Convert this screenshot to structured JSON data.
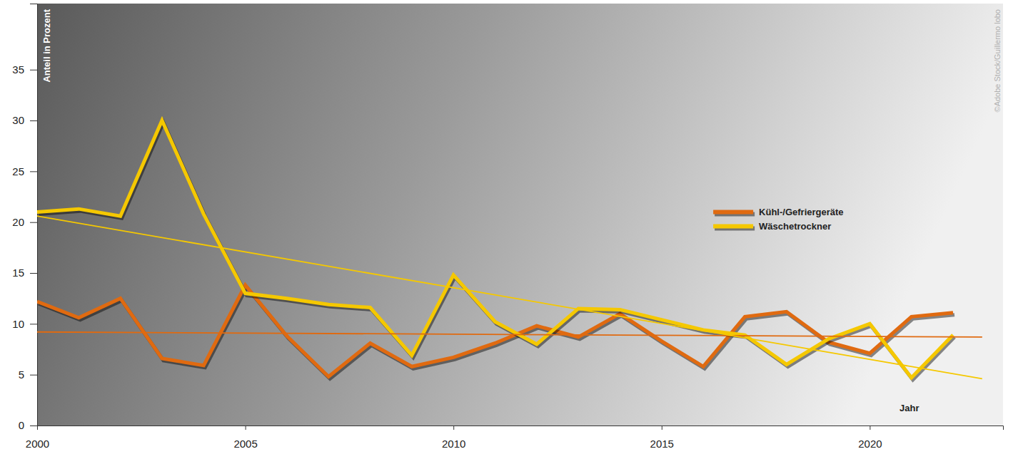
{
  "chart_data": {
    "type": "line",
    "x_label": "Jahr",
    "y_label": "Anteil in Prozent",
    "credit": "©Adobe Stock/Guillermo lobo",
    "x": [
      2000,
      2001,
      2002,
      2003,
      2004,
      2005,
      2006,
      2007,
      2008,
      2009,
      2010,
      2011,
      2012,
      2013,
      2014,
      2015,
      2016,
      2017,
      2018,
      2019,
      2020,
      2021,
      2022
    ],
    "xlim": [
      2000,
      2023.2
    ],
    "xticks": [
      2000,
      2005,
      2010,
      2015,
      2020
    ],
    "ylim": [
      0,
      41.5
    ],
    "yticks": [
      0,
      5,
      10,
      15,
      20,
      25,
      30,
      35
    ],
    "grid": false,
    "legend": "right",
    "series": [
      {
        "name": "Kühl-/Gefriergeräte",
        "color": "#e06a10",
        "values": [
          12.2,
          10.6,
          12.5,
          6.6,
          5.9,
          13.8,
          8.8,
          4.8,
          8.1,
          5.8,
          6.7,
          8.1,
          9.8,
          8.7,
          11.0,
          8.3,
          5.8,
          10.7,
          11.2,
          8.2,
          7.1,
          10.7,
          11.1
        ]
      },
      {
        "name": "Wäschetrockner",
        "color": "#f5c800",
        "values": [
          21.0,
          21.3,
          20.6,
          30.0,
          20.8,
          13.0,
          12.5,
          11.9,
          11.6,
          6.9,
          14.8,
          10.2,
          8.0,
          11.5,
          11.4,
          10.4,
          9.4,
          8.9,
          6.0,
          8.5,
          10.0,
          4.7,
          8.9
        ]
      },
      {
        "color": "#e06a10",
        "line_style": "trend",
        "x": [
          2000,
          2022.7
        ],
        "values": [
          9.2,
          8.7
        ]
      },
      {
        "color": "#f5c800",
        "line_style": "trend",
        "x": [
          2000,
          2022.7
        ],
        "values": [
          20.6,
          4.6
        ]
      }
    ]
  }
}
